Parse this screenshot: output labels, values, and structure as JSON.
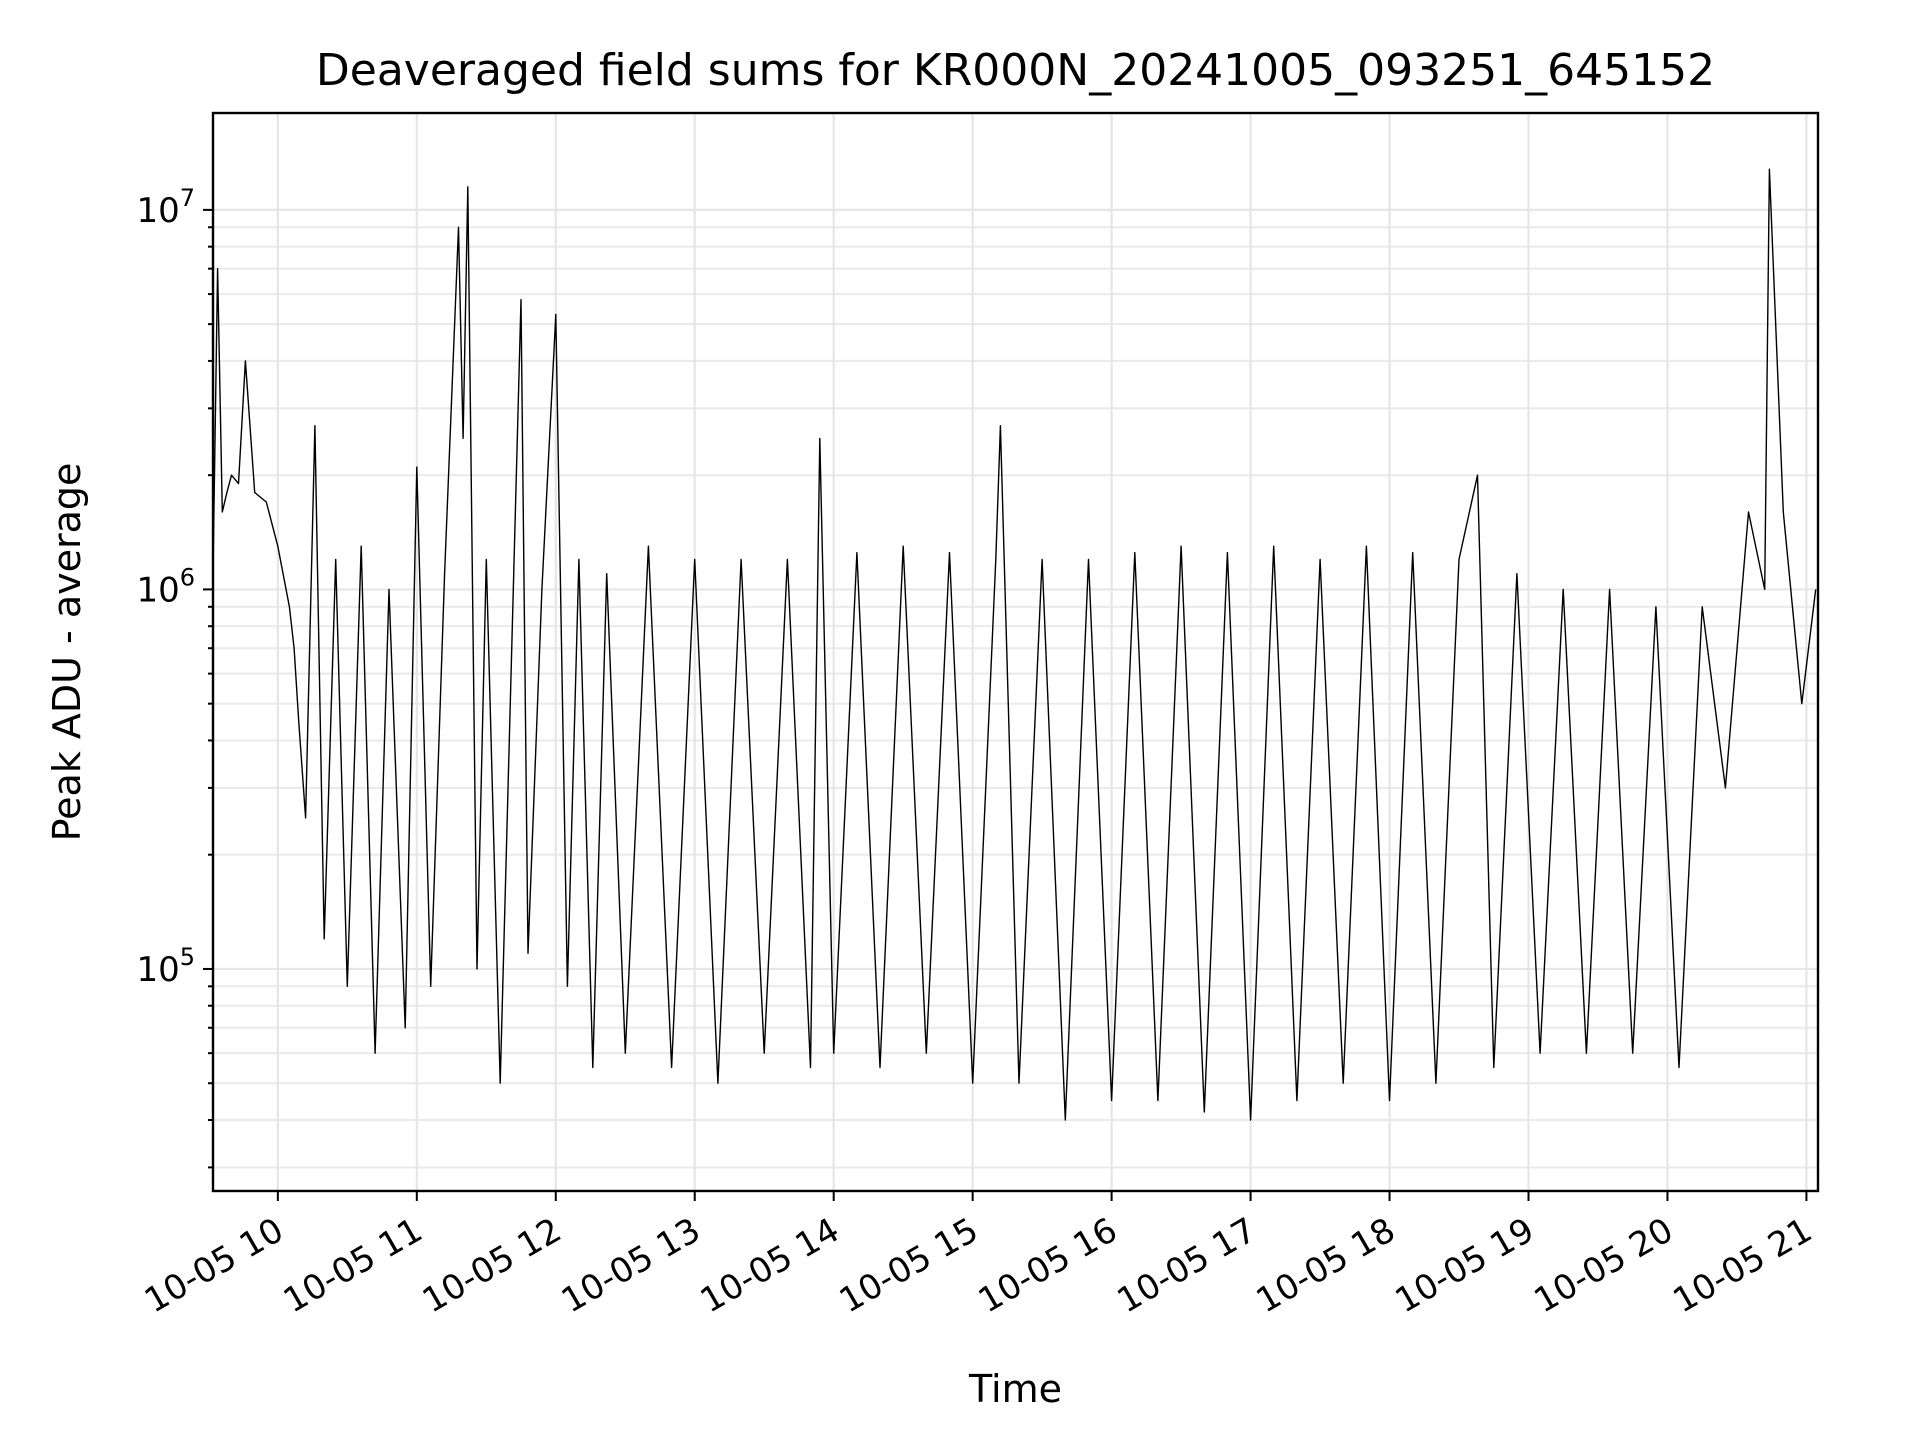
{
  "chart_data": {
    "type": "line",
    "title": "Deaveraged field sums for KR000N_20241005_093251_645152",
    "xlabel": "Time",
    "ylabel": "Peak ADU - average",
    "x_scale": "time",
    "y_scale": "log",
    "xlim": [
      "2024-10-05 09:32",
      "2024-10-05 21:05"
    ],
    "ylim": [
      26000,
      18000000
    ],
    "x_ticks": [
      "10-05 10",
      "10-05 11",
      "10-05 12",
      "10-05 13",
      "10-05 14",
      "10-05 15",
      "10-05 16",
      "10-05 17",
      "10-05 18",
      "10-05 19",
      "10-05 20",
      "10-05 21"
    ],
    "y_ticks": [
      {
        "base": "10",
        "exp": "5",
        "value": 100000
      },
      {
        "base": "10",
        "exp": "6",
        "value": 1000000
      },
      {
        "base": "10",
        "exp": "7",
        "value": 10000000
      }
    ],
    "grid": true,
    "legend": "none",
    "line_color": "#000000",
    "series": [
      {
        "x": [
          "2024-10-05 09:32",
          "2024-10-05 09:34",
          "2024-10-05 09:36",
          "2024-10-05 09:38",
          "2024-10-05 09:40",
          "2024-10-05 09:43",
          "2024-10-05 09:46",
          "2024-10-05 09:50",
          "2024-10-05 09:55",
          "2024-10-05 10:00",
          "2024-10-05 10:05",
          "2024-10-05 10:07",
          "2024-10-05 10:09",
          "2024-10-05 10:12",
          "2024-10-05 10:16",
          "2024-10-05 10:20",
          "2024-10-05 10:25",
          "2024-10-05 10:30",
          "2024-10-05 10:36",
          "2024-10-05 10:42",
          "2024-10-05 10:48",
          "2024-10-05 10:55",
          "2024-10-05 11:00",
          "2024-10-05 11:06",
          "2024-10-05 11:12",
          "2024-10-05 11:18",
          "2024-10-05 11:20",
          "2024-10-05 11:22",
          "2024-10-05 11:26",
          "2024-10-05 11:30",
          "2024-10-05 11:36",
          "2024-10-05 11:42",
          "2024-10-05 11:45",
          "2024-10-05 11:48",
          "2024-10-05 11:54",
          "2024-10-05 12:00",
          "2024-10-05 12:05",
          "2024-10-05 12:10",
          "2024-10-05 12:16",
          "2024-10-05 12:22",
          "2024-10-05 12:30",
          "2024-10-05 12:40",
          "2024-10-05 12:50",
          "2024-10-05 13:00",
          "2024-10-05 13:10",
          "2024-10-05 13:20",
          "2024-10-05 13:30",
          "2024-10-05 13:40",
          "2024-10-05 13:50",
          "2024-10-05 13:54",
          "2024-10-05 14:00",
          "2024-10-05 14:10",
          "2024-10-05 14:20",
          "2024-10-05 14:30",
          "2024-10-05 14:40",
          "2024-10-05 14:50",
          "2024-10-05 15:00",
          "2024-10-05 15:10",
          "2024-10-05 15:12",
          "2024-10-05 15:20",
          "2024-10-05 15:30",
          "2024-10-05 15:40",
          "2024-10-05 15:50",
          "2024-10-05 16:00",
          "2024-10-05 16:10",
          "2024-10-05 16:20",
          "2024-10-05 16:30",
          "2024-10-05 16:40",
          "2024-10-05 16:50",
          "2024-10-05 17:00",
          "2024-10-05 17:10",
          "2024-10-05 17:20",
          "2024-10-05 17:30",
          "2024-10-05 17:40",
          "2024-10-05 17:50",
          "2024-10-05 18:00",
          "2024-10-05 18:10",
          "2024-10-05 18:20",
          "2024-10-05 18:30",
          "2024-10-05 18:38",
          "2024-10-05 18:45",
          "2024-10-05 18:55",
          "2024-10-05 19:05",
          "2024-10-05 19:15",
          "2024-10-05 19:25",
          "2024-10-05 19:35",
          "2024-10-05 19:45",
          "2024-10-05 19:55",
          "2024-10-05 20:05",
          "2024-10-05 20:15",
          "2024-10-05 20:25",
          "2024-10-05 20:35",
          "2024-10-05 20:42",
          "2024-10-05 20:44",
          "2024-10-05 20:50",
          "2024-10-05 20:58",
          "2024-10-05 21:04"
        ],
        "y": [
          1100000,
          7000000,
          1600000,
          1800000,
          2000000,
          1900000,
          4000000,
          1800000,
          1700000,
          1300000,
          900000,
          700000,
          450000,
          250000,
          2700000,
          120000,
          1200000,
          90000,
          1300000,
          60000,
          1000000,
          70000,
          2100000,
          90000,
          1100000,
          9000000,
          2500000,
          11500000,
          100000,
          1200000,
          50000,
          1200000,
          5800000,
          110000,
          1000000,
          5300000,
          90000,
          1200000,
          55000,
          1100000,
          60000,
          1300000,
          55000,
          1200000,
          50000,
          1200000,
          60000,
          1200000,
          55000,
          2500000,
          60000,
          1250000,
          55000,
          1300000,
          60000,
          1250000,
          50000,
          1200000,
          2700000,
          50000,
          1200000,
          40000,
          1200000,
          45000,
          1250000,
          45000,
          1300000,
          42000,
          1250000,
          40000,
          1300000,
          45000,
          1200000,
          50000,
          1300000,
          45000,
          1250000,
          50000,
          1200000,
          2000000,
          55000,
          1100000,
          60000,
          1000000,
          60000,
          1000000,
          60000,
          900000,
          55000,
          900000,
          300000,
          1600000,
          1000000,
          12800000,
          1600000,
          500000,
          1000000
        ]
      }
    ]
  }
}
